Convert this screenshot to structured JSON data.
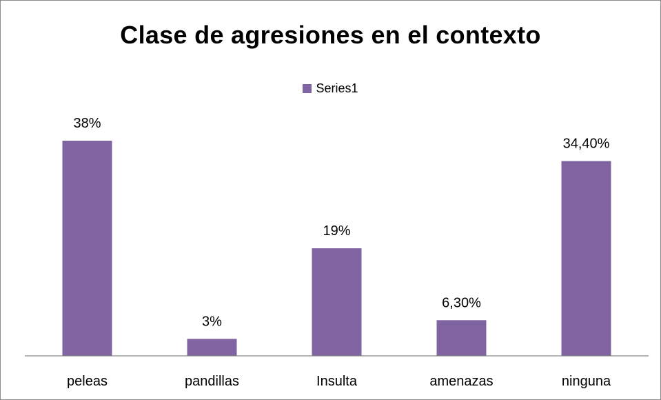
{
  "chart_data": {
    "type": "bar",
    "title": "Clase de agresiones en el contexto",
    "xlabel": "",
    "ylabel": "",
    "categories": [
      "peleas",
      "pandillas",
      "Insulta",
      "amenazas",
      "ninguna"
    ],
    "series": [
      {
        "name": "Series1",
        "values": [
          38,
          3,
          19,
          6.3,
          34.4
        ],
        "labels": [
          "38%",
          "3%",
          "19%",
          "6,30%",
          "34,40%"
        ]
      }
    ],
    "ylim": [
      0,
      38
    ],
    "grid": false,
    "legend": "top",
    "bar_color": "#8064a2",
    "axis_color": "#868686"
  }
}
